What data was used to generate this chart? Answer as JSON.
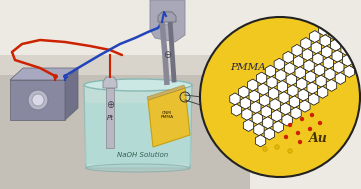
{
  "bg_color": "#ede9e3",
  "table_top_color": "#d8d4cc",
  "table_side_color": "#c4c0b8",
  "beaker_body_color": "#c8e8e4",
  "beaker_liquid_color": "#b8dcd8",
  "beaker_edge_color": "#90bcb8",
  "ps_body_color": "#8888a0",
  "ps_top_color": "#a0a0b8",
  "ps_knob_color": "#d0d0d8",
  "pt_color": "#b0b0bc",
  "red_wire": "#cc2200",
  "blue_wire": "#2244bb",
  "au_color": "#e8c030",
  "circle_bg_upper": "#d8eef8",
  "circle_bg_lower": "#f0c820",
  "graphene_bond": "#222222",
  "graphene_fill": "#ffffff",
  "red_dot": "#cc2200",
  "yellow_dot": "#e8b800",
  "circle_edge": "#222222",
  "naoh_text": "NaOH Solution",
  "pmma_label": "PMMA",
  "au_label": "Au",
  "pt_label": "Pt"
}
